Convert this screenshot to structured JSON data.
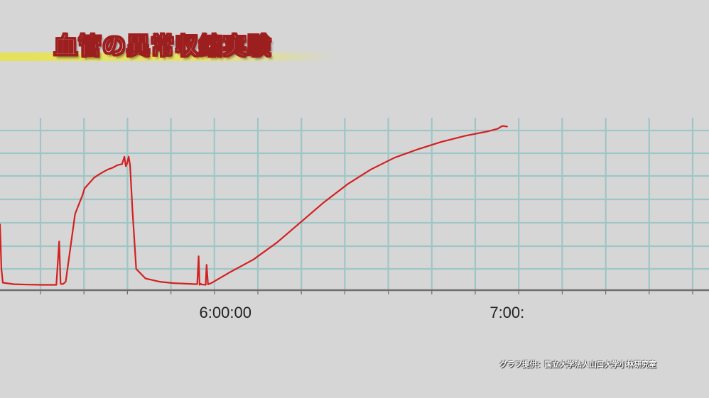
{
  "title": "血管の異常収縮実験",
  "credit": "グラフ提供：国立大学法人山口大学小林研究室",
  "colors": {
    "line": "#d42020",
    "grid": "#9ec6c6",
    "baseline": "#6e6e6e",
    "background": "#d6d6d6",
    "title_band": "#e6e15a",
    "title_outline": "#a11f1f"
  },
  "chart_data": {
    "type": "line",
    "title": "",
    "xlabel": "",
    "ylabel": "",
    "x_tick_labels": [
      "6:00:00",
      "7:00:"
    ],
    "x_tick_values_min": [
      360,
      420
    ],
    "xlim_min": [
      312,
      463
    ],
    "ylim": [
      0,
      7.5
    ],
    "grid": true,
    "series": [
      {
        "x_min": [
          312.0,
          312.3,
          312.6,
          315,
          318,
          321,
          324,
          324.6,
          324.9,
          325.2,
          325.5,
          326,
          328,
          329.6,
          330,
          331,
          332,
          333,
          334,
          335,
          336,
          337,
          338,
          338.5,
          338.8,
          339.1,
          339.4,
          339.7,
          340.2,
          341,
          343,
          346,
          349,
          352,
          354,
          354.3,
          354.5,
          354.8,
          355,
          355.5,
          355.8,
          356.0,
          356.3,
          356.6,
          357,
          361,
          366,
          371,
          376,
          381,
          386,
          391,
          396,
          401,
          406,
          411,
          416,
          418,
          419,
          420
        ],
        "values": [
          3.1,
          1.0,
          0.35,
          0.28,
          0.26,
          0.25,
          0.25,
          2.3,
          0.3,
          0.28,
          0.3,
          0.4,
          3.6,
          4.5,
          4.8,
          5.05,
          5.3,
          5.45,
          5.58,
          5.7,
          5.78,
          5.9,
          5.95,
          6.3,
          5.85,
          6.0,
          6.3,
          5.9,
          3.8,
          1.0,
          0.55,
          0.4,
          0.33,
          0.3,
          0.28,
          1.6,
          0.25,
          0.3,
          0.26,
          0.26,
          0.25,
          1.2,
          0.27,
          0.3,
          0.33,
          0.85,
          1.45,
          2.25,
          3.2,
          4.15,
          5.0,
          5.7,
          6.25,
          6.65,
          7.0,
          7.28,
          7.5,
          7.62,
          7.75,
          7.72
        ]
      }
    ]
  }
}
